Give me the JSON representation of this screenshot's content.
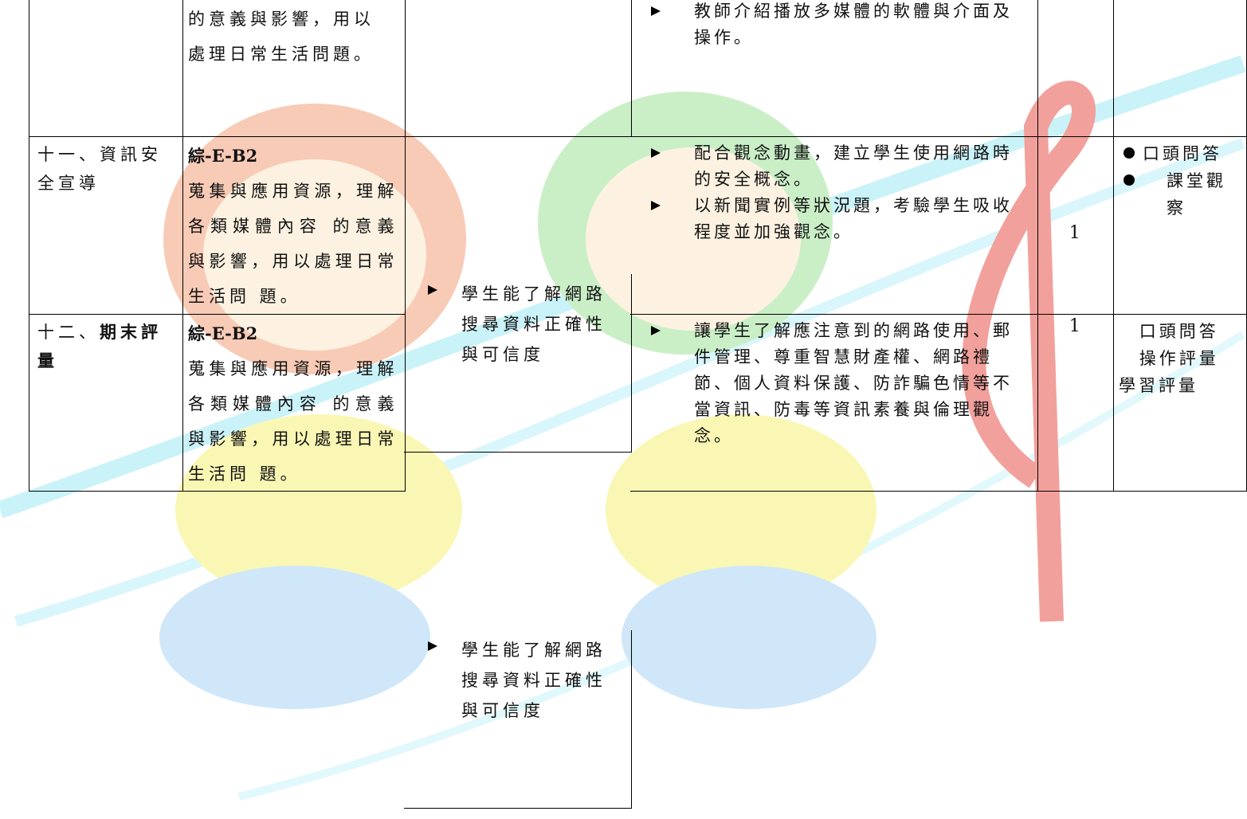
{
  "table": {
    "rows": [
      {
        "competency": {
          "lines": [
            "的意義與影響，用以",
            "處理日常生活問題。"
          ]
        },
        "activities": [
          "教師介紹播放多媒體的軟體與介面及操作。"
        ]
      },
      {
        "topic": "十一、資訊安全宣導",
        "competency": {
          "code": "綜-E-B2",
          "text": "蒐集與應用資源，理解各類媒體內容 的意義與影響，用以處理日常生活問 題。"
        },
        "objective": "學生能了解網路搜尋資料正確性與可信度",
        "activities": [
          "配合觀念動畫，建立學生使用網路時的安全概念。",
          "以新聞實例等狀況題，考驗學生吸收程度並加強觀念。"
        ],
        "periods": 1,
        "assessment": [
          "口頭問答",
          "課堂觀察"
        ]
      },
      {
        "topic": "十二、",
        "topic_bold": "期末評量",
        "competency": {
          "code": "綜-E-B2",
          "text": "蒐集與應用資源，理解各類媒體內容 的意義與影響，用以處理日常生活問 題。"
        },
        "objective": "學生能了解網路搜尋資料正確性與可信度",
        "activities": [
          "讓學生了解應注意到的網路使用、郵件管理、尊重智慧財產權、網路禮節、個人資料保護、防詐騙色情等不當資訊、防毒等資訊素養與倫理觀念。"
        ],
        "periods": 1,
        "assessment": [
          "口頭問答",
          "操作評量",
          "學習評量"
        ]
      }
    ]
  }
}
